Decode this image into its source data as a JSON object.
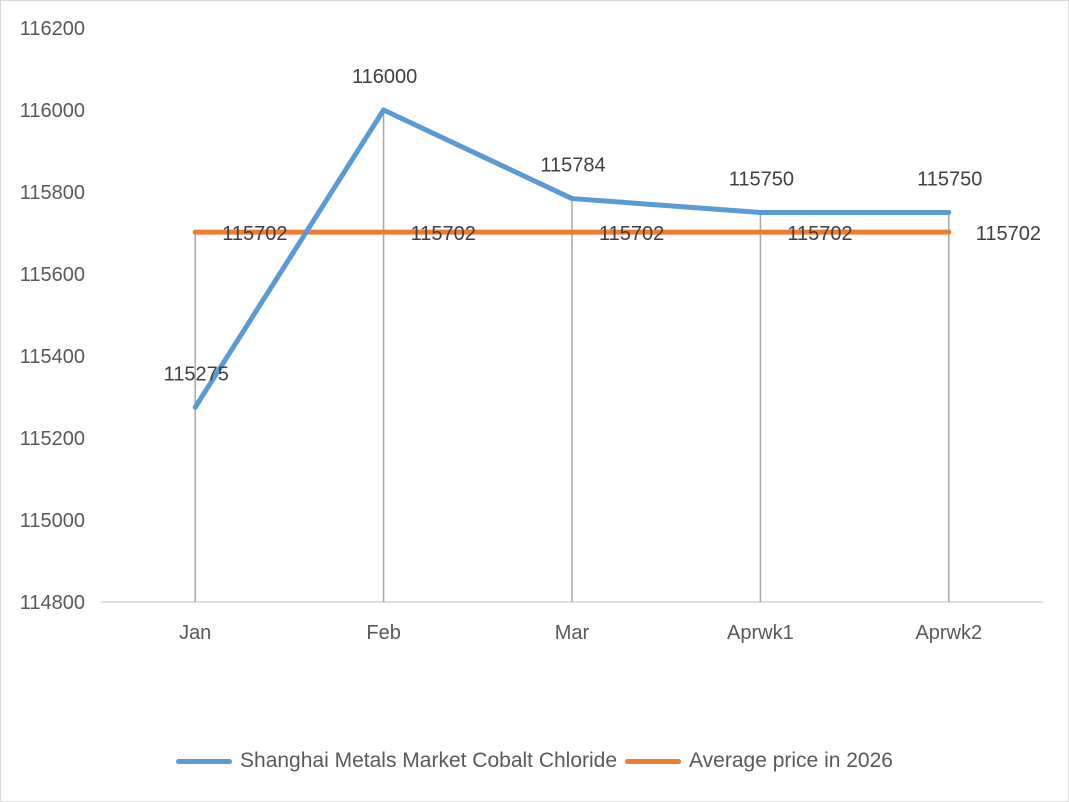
{
  "chart_data": {
    "type": "line",
    "title": "",
    "xlabel": "",
    "ylabel": "",
    "categories": [
      "Jan",
      "Feb",
      "Mar",
      "Aprwk1",
      "Aprwk2"
    ],
    "ylim": [
      114800,
      116200
    ],
    "yticks": [
      114800,
      115000,
      115200,
      115400,
      115600,
      115800,
      116000,
      116200
    ],
    "drop_lines": true,
    "grid": false,
    "legend_position": "bottom",
    "series": [
      {
        "name": "Shanghai Metals Market Cobalt Chloride",
        "values": [
          115275,
          116000,
          115784,
          115750,
          115750
        ],
        "labels": [
          "115275",
          "116000",
          "115784",
          "115750",
          "115750"
        ],
        "color": "#5b9bd5"
      },
      {
        "name": "Average price in 2026",
        "values": [
          115702,
          115702,
          115702,
          115702,
          115702
        ],
        "labels": [
          "115702",
          "115702",
          "115702",
          "115702",
          "115702"
        ],
        "color": "#ed7d31"
      }
    ]
  }
}
